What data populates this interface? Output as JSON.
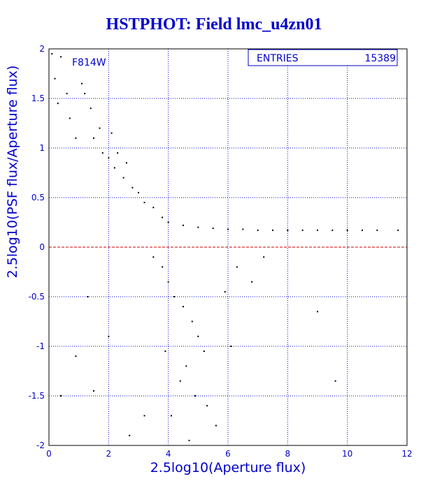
{
  "title": "HSTPHOT: Field lmc_u4zn01",
  "filter_label": "F814W",
  "stats_box": {
    "label": "ENTRIES",
    "value": "15389"
  },
  "colors": {
    "text": "#0000cc",
    "frame": "#000000",
    "grid": "#0000cc",
    "reference_line": "#cc0000",
    "points": "#000000"
  },
  "chart_data": {
    "type": "scatter",
    "title": "HSTPHOT: Field lmc_u4zn01",
    "xlabel": "2.5log10(Aperture flux)",
    "ylabel": "2.5log10(PSF flux/Aperture flux)",
    "xlim": [
      0,
      12
    ],
    "ylim": [
      -2,
      2
    ],
    "x_ticks": [
      "0",
      "2",
      "4",
      "6",
      "8",
      "10",
      "12"
    ],
    "y_ticks": [
      "-2",
      "-1.5",
      "-1",
      "-0.5",
      "0",
      "0.5",
      "1",
      "1.5",
      "2"
    ],
    "grid": true,
    "grid_style": "dotted",
    "reference_line_y": 0,
    "entries": 15389,
    "series": [
      {
        "points_sample": [
          [
            0.1,
            1.95
          ],
          [
            0.2,
            1.7
          ],
          [
            0.3,
            1.45
          ],
          [
            0.4,
            1.92
          ],
          [
            0.6,
            1.55
          ],
          [
            0.7,
            1.3
          ],
          [
            0.9,
            1.1
          ],
          [
            1.1,
            1.65
          ],
          [
            1.2,
            1.55
          ],
          [
            1.4,
            1.4
          ],
          [
            1.5,
            1.1
          ],
          [
            1.7,
            1.2
          ],
          [
            1.8,
            0.95
          ],
          [
            2.0,
            0.9
          ],
          [
            2.1,
            1.15
          ],
          [
            2.2,
            0.8
          ],
          [
            2.3,
            0.95
          ],
          [
            2.5,
            0.7
          ],
          [
            2.6,
            0.85
          ],
          [
            2.8,
            0.6
          ],
          [
            3.0,
            0.55
          ],
          [
            3.2,
            0.45
          ],
          [
            3.5,
            0.4
          ],
          [
            3.8,
            0.3
          ],
          [
            4.0,
            0.25
          ],
          [
            4.5,
            0.22
          ],
          [
            5.0,
            0.2
          ],
          [
            5.5,
            0.19
          ],
          [
            6.0,
            0.18
          ],
          [
            6.5,
            0.18
          ],
          [
            7.0,
            0.17
          ],
          [
            7.5,
            0.17
          ],
          [
            8.0,
            0.17
          ],
          [
            8.5,
            0.17
          ],
          [
            9.0,
            0.17
          ],
          [
            9.5,
            0.17
          ],
          [
            10.0,
            0.17
          ],
          [
            10.5,
            0.17
          ],
          [
            11.0,
            0.17
          ],
          [
            11.7,
            0.17
          ],
          [
            3.5,
            -0.1
          ],
          [
            3.8,
            -0.2
          ],
          [
            4.0,
            -0.35
          ],
          [
            4.2,
            -0.5
          ],
          [
            4.5,
            -0.6
          ],
          [
            4.8,
            -0.75
          ],
          [
            5.0,
            -0.9
          ],
          [
            5.2,
            -1.05
          ],
          [
            4.6,
            -1.2
          ],
          [
            4.4,
            -1.35
          ],
          [
            4.9,
            -1.5
          ],
          [
            5.3,
            -1.6
          ],
          [
            4.1,
            -1.7
          ],
          [
            5.6,
            -1.8
          ],
          [
            4.7,
            -1.95
          ],
          [
            3.2,
            -1.7
          ],
          [
            2.7,
            -1.9
          ],
          [
            1.5,
            -1.45
          ],
          [
            0.9,
            -1.1
          ],
          [
            0.4,
            -1.5
          ],
          [
            6.3,
            -0.2
          ],
          [
            6.8,
            -0.35
          ],
          [
            7.2,
            -0.1
          ],
          [
            9.0,
            -0.65
          ],
          [
            9.6,
            -1.35
          ],
          [
            2.0,
            -0.9
          ],
          [
            1.3,
            -0.5
          ],
          [
            5.9,
            -0.45
          ],
          [
            6.1,
            -1.0
          ],
          [
            3.9,
            -1.05
          ]
        ]
      }
    ]
  }
}
